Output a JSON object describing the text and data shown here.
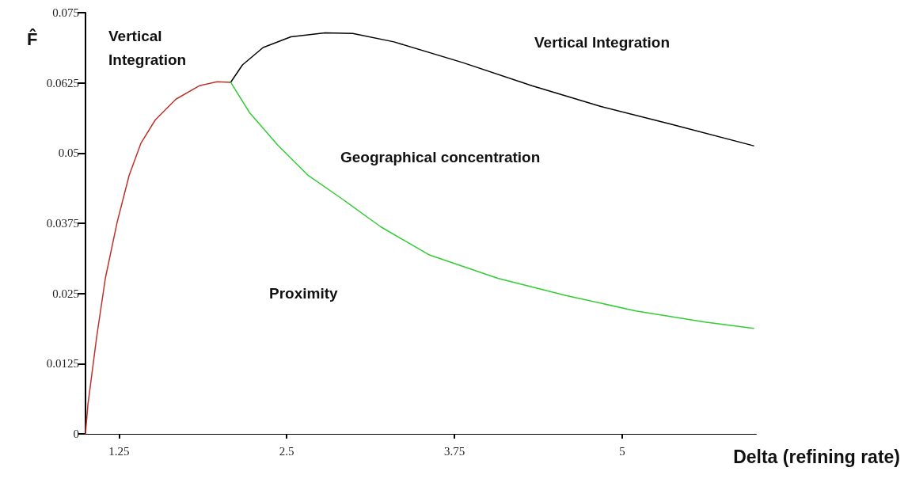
{
  "chart_data": {
    "type": "line",
    "xlabel": "Delta (refining rate)",
    "ylabel": "F̂",
    "xlim": [
      1,
      6
    ],
    "xticks": [
      1.25,
      2.5,
      3.75,
      5
    ],
    "ylim": [
      0,
      0.075
    ],
    "yticks": [
      0,
      0.0125,
      0.025,
      0.0375,
      0.05,
      0.0625,
      0.075
    ],
    "line_style": "solid",
    "series": [
      {
        "color": "#c0302a",
        "x": [
          1,
          1.018,
          1.083,
          1.148,
          1.236,
          1.325,
          1.414,
          1.52,
          1.674,
          1.851,
          1.981,
          2.082
        ],
        "values": [
          0,
          0.0052,
          0.0172,
          0.0277,
          0.0377,
          0.046,
          0.0518,
          0.0559,
          0.0596,
          0.062,
          0.0627,
          0.0626
        ]
      },
      {
        "color": "#000000",
        "x": [
          2.082,
          2.17,
          2.324,
          2.531,
          2.785,
          2.992,
          3.299,
          3.813,
          4.327,
          4.842,
          5.356,
          5.98
        ],
        "values": [
          0.0626,
          0.0657,
          0.0688,
          0.0707,
          0.0714,
          0.0713,
          0.0698,
          0.0661,
          0.062,
          0.0583,
          0.0552,
          0.0513
        ]
      },
      {
        "color": "#33cc33",
        "x": [
          2.082,
          2.223,
          2.43,
          2.661,
          2.915,
          3.199,
          3.559,
          4.073,
          4.587,
          5.102,
          5.616,
          5.98
        ],
        "values": [
          0.0626,
          0.0572,
          0.0515,
          0.046,
          0.0418,
          0.0369,
          0.0319,
          0.0277,
          0.0246,
          0.0219,
          0.0199,
          0.0188
        ]
      }
    ],
    "annotations": [
      "Vertical Integration",
      "Vertical Integration",
      "Geographical concentration",
      "Proximity"
    ]
  }
}
